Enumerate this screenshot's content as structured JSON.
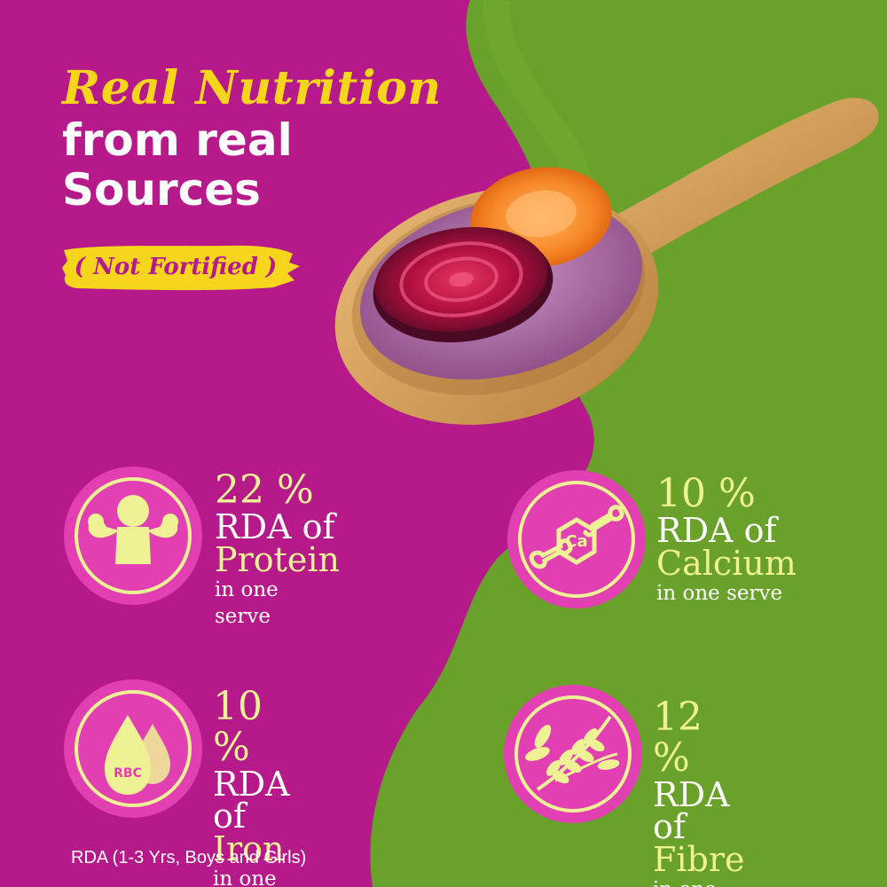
{
  "headline": {
    "accent": "Real Nutrition",
    "line2": "from real",
    "line3": "Sources"
  },
  "tag": {
    "label": "( Not Fortified )"
  },
  "nutrients": [
    {
      "percent": "22 %",
      "rda": "RDA of",
      "name": "Protein",
      "serve": "in one serve",
      "icon": "muscle-icon"
    },
    {
      "percent": "10 %",
      "rda": "RDA of",
      "name": "Calcium",
      "serve": "in one serve",
      "icon": "bone-calcium-icon"
    },
    {
      "percent": "10 %",
      "rda": "RDA of",
      "name": "Iron",
      "serve": "in one serve",
      "icon": "blood-drop-rbc-icon",
      "icon_text": "RBC"
    },
    {
      "percent": "12 %",
      "rda": "RDA of",
      "name": "Fibre",
      "serve": "in one serve",
      "icon": "wheat-icon"
    }
  ],
  "calcium_symbol": "Ca",
  "footnote": "RDA (1-3 Yrs, Boys and Girls)",
  "colors": {
    "magenta": "#b5198a",
    "green": "#6aa12a",
    "yellow": "#f6d61c",
    "pale_yellow": "#eef295",
    "badge_pink": "#e23fb3"
  }
}
